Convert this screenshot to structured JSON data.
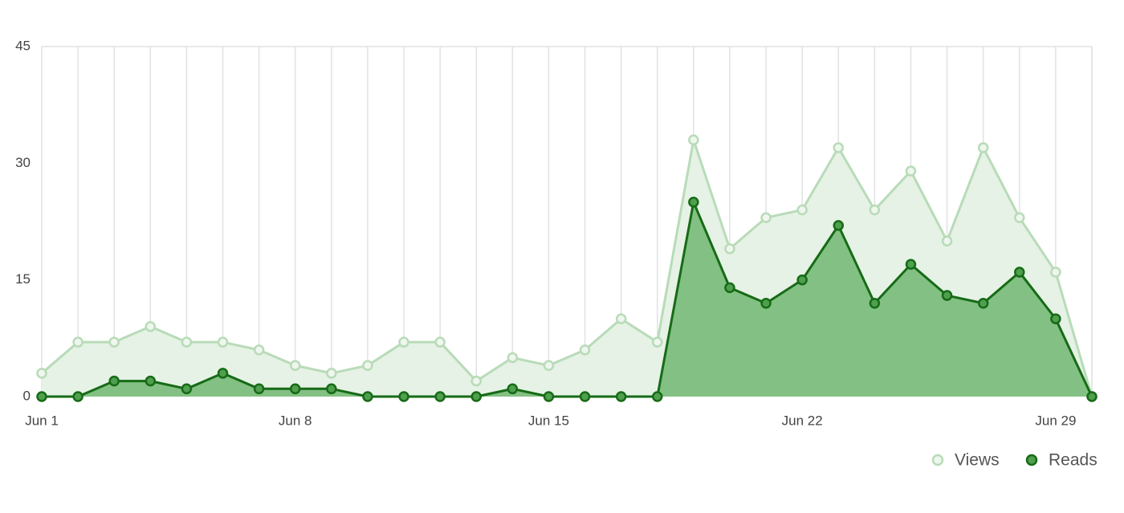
{
  "chart_data": {
    "type": "area",
    "categories": [
      "Jun 1",
      null,
      null,
      null,
      null,
      null,
      null,
      "Jun 8",
      null,
      null,
      null,
      null,
      null,
      null,
      "Jun 15",
      null,
      null,
      null,
      null,
      null,
      null,
      "Jun 22",
      null,
      null,
      null,
      null,
      null,
      null,
      "Jun 29",
      null
    ],
    "series": [
      {
        "name": "Views",
        "color": "#b8dbb8",
        "fill": "#e6f2e6",
        "values": [
          3,
          7,
          7,
          9,
          7,
          7,
          6,
          4,
          3,
          4,
          7,
          7,
          2,
          5,
          4,
          6,
          10,
          7,
          33,
          19,
          23,
          24,
          32,
          24,
          29,
          20,
          32,
          23,
          16,
          0
        ]
      },
      {
        "name": "Reads",
        "color": "#166b16",
        "fill": "#83c083",
        "values": [
          0,
          0,
          2,
          2,
          1,
          3,
          1,
          1,
          1,
          0,
          0,
          0,
          0,
          1,
          0,
          0,
          0,
          0,
          25,
          14,
          12,
          15,
          22,
          12,
          17,
          13,
          12,
          16,
          10,
          0
        ]
      }
    ],
    "ylim": [
      0,
      45
    ],
    "yticks": [
      0,
      15,
      30,
      45
    ],
    "grid": true
  }
}
